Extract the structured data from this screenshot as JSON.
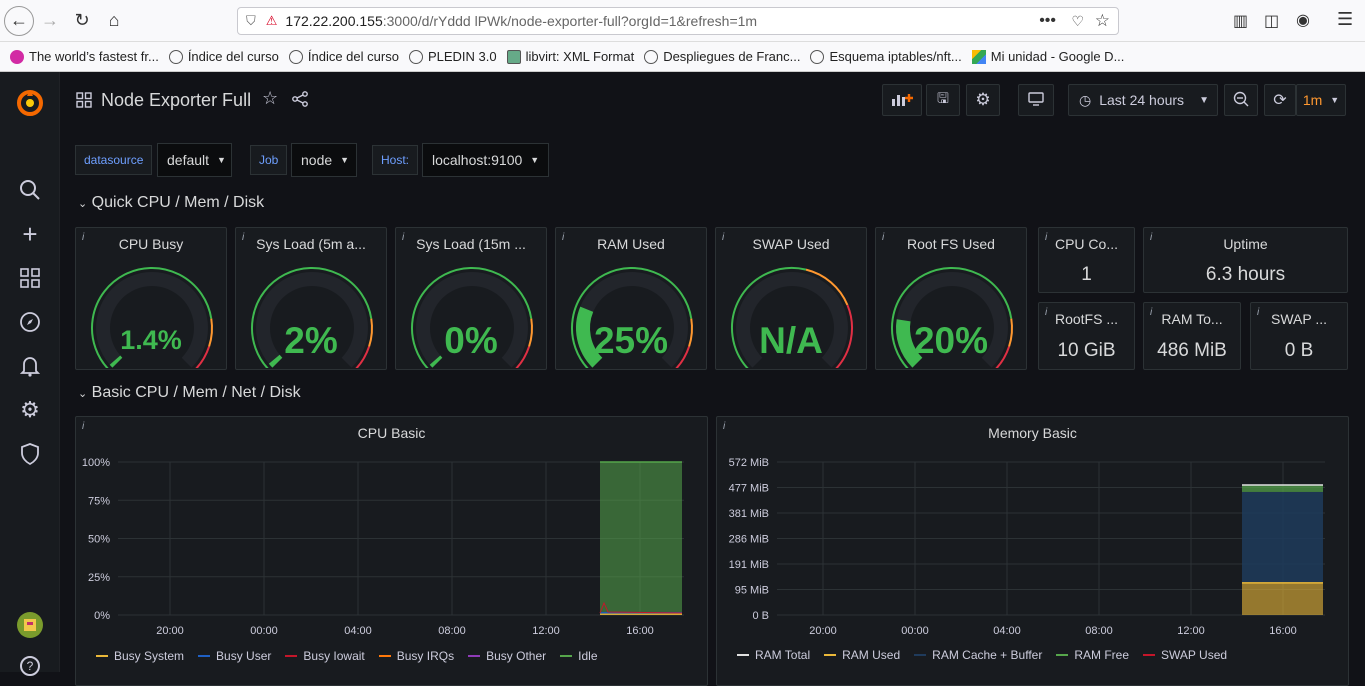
{
  "browser": {
    "url_host": "172.22.200.155",
    "url_path": ":3000/d/rYddd lPWk/node-exporter-full?orgId=1&refresh=1m",
    "bookmarks": [
      "The world’s fastest fr...",
      "Índice del curso",
      "Índice del curso",
      "PLEDIN 3.0",
      "libvirt: XML Format",
      "Despliegues de Franc...",
      "Esquema iptables/nft...",
      "Mi unidad - Google D..."
    ]
  },
  "dashboard": {
    "title": "Node Exporter Full",
    "time_range": "Last 24 hours",
    "refresh": "1m"
  },
  "variables": [
    {
      "label": "datasource",
      "value": "default"
    },
    {
      "label": "Job",
      "value": "node"
    },
    {
      "label": "Host:",
      "value": "localhost:9100"
    }
  ],
  "rows": {
    "quick": "Quick CPU / Mem / Disk",
    "basic": "Basic CPU / Mem / Net / Disk"
  },
  "gauges": [
    {
      "title": "CPU Busy",
      "value": "1.4%",
      "fraction": 0.014,
      "thresholds": "green"
    },
    {
      "title": "Sys Load (5m a...",
      "value": "2%",
      "fraction": 0.02,
      "thresholds": "green"
    },
    {
      "title": "Sys Load (15m ...",
      "value": "0%",
      "fraction": 0.0,
      "thresholds": "green"
    },
    {
      "title": "RAM Used",
      "value": "25%",
      "fraction": 0.25,
      "thresholds": "green"
    },
    {
      "title": "SWAP Used",
      "value": "N/A",
      "fraction": 0.0,
      "thresholds": "red"
    },
    {
      "title": "Root FS Used",
      "value": "20%",
      "fraction": 0.2,
      "thresholds": "green"
    }
  ],
  "stats": [
    {
      "title": "CPU Co...",
      "value": "1"
    },
    {
      "title": "Uptime",
      "value": "6.3 hours"
    },
    {
      "title": "RootFS ...",
      "value": "10 GiB"
    },
    {
      "title": "RAM To...",
      "value": "486 MiB"
    },
    {
      "title": "SWAP ...",
      "value": "0 B"
    }
  ],
  "chart_data": [
    {
      "type": "area",
      "title": "CPU Basic",
      "y_ticks": [
        "100%",
        "75%",
        "50%",
        "25%",
        "0%"
      ],
      "x_ticks": [
        "20:00",
        "00:00",
        "04:00",
        "08:00",
        "12:00",
        "16:00"
      ],
      "ylim": [
        0,
        100
      ],
      "series": [
        {
          "name": "Busy System",
          "color": "#eab839",
          "values": [
            1
          ]
        },
        {
          "name": "Busy User",
          "color": "#1f60c4",
          "values": [
            1
          ]
        },
        {
          "name": "Busy Iowait",
          "color": "#c4162a",
          "values": [
            0
          ]
        },
        {
          "name": "Busy IRQs",
          "color": "#ff780a",
          "values": [
            0
          ]
        },
        {
          "name": "Busy Other",
          "color": "#8f3bb8",
          "values": [
            0
          ]
        },
        {
          "name": "Idle",
          "color": "#56a64b",
          "values": [
            98
          ]
        }
      ]
    },
    {
      "type": "area",
      "title": "Memory Basic",
      "y_ticks": [
        "572 MiB",
        "477 MiB",
        "381 MiB",
        "286 MiB",
        "191 MiB",
        "95 MiB",
        "0 B"
      ],
      "x_ticks": [
        "20:00",
        "00:00",
        "04:00",
        "08:00",
        "12:00",
        "16:00"
      ],
      "series": [
        {
          "name": "RAM Total",
          "color": "#e0e0e0",
          "values": [
            486
          ]
        },
        {
          "name": "RAM Used",
          "color": "#eab839",
          "values": [
            120
          ]
        },
        {
          "name": "RAM Cache + Buffer",
          "color": "#1f3b5c",
          "values": [
            340
          ]
        },
        {
          "name": "RAM Free",
          "color": "#56a64b",
          "values": [
            26
          ]
        },
        {
          "name": "SWAP Used",
          "color": "#c4162a",
          "values": [
            0
          ]
        }
      ]
    }
  ]
}
